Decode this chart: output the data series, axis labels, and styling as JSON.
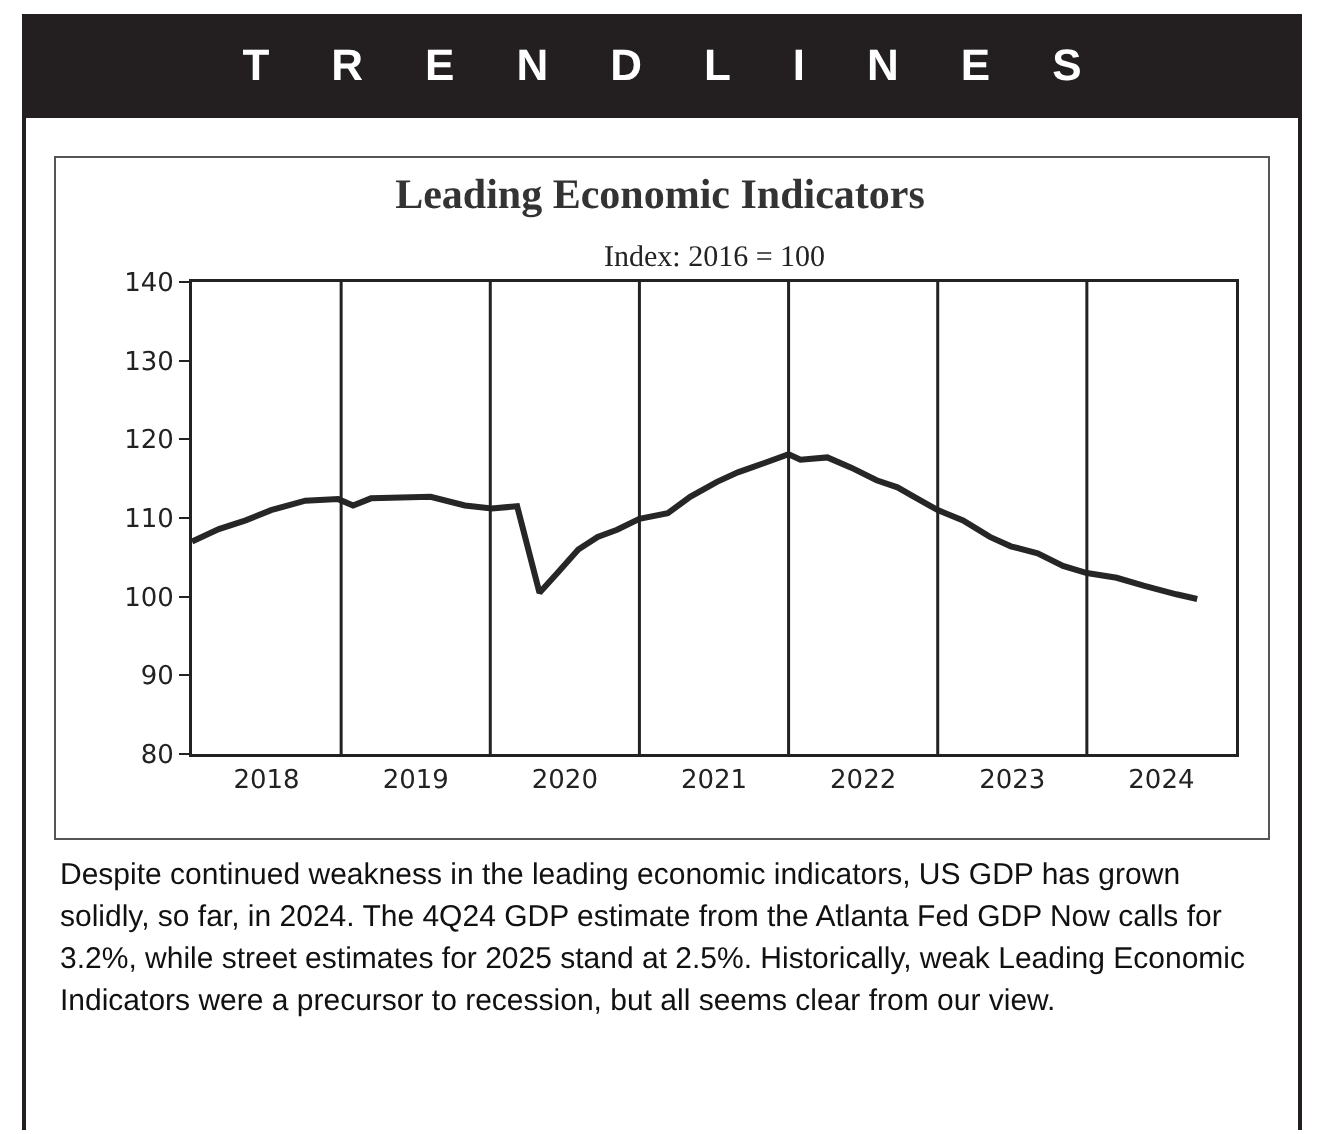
{
  "chart_data": {
    "type": "line",
    "title": "Leading Economic Indicators",
    "subtitle": "Index: 2016 = 100",
    "annotations": [
      "TRENDLINES",
      "Despite continued weakness in the leading economic indicators, US GDP has grown solidly, so far, in 2024.  The 4Q24 GDP estimate from the Atlanta Fed GDP Now calls for 3.2%, while street estimates for 2025 stand at 2.5%.  Historically, weak Leading Economic Indicators were a precursor to recession, but all seems clear from our view."
    ],
    "x": [
      2018.0,
      2018.18,
      2018.36,
      2018.53,
      2018.76,
      2018.98,
      2019.08,
      2019.2,
      2019.6,
      2019.83,
      2020.01,
      2020.18,
      2020.33,
      2020.45,
      2020.59,
      2020.72,
      2020.85,
      2021.0,
      2021.19,
      2021.34,
      2021.52,
      2021.66,
      2021.75,
      2022.0,
      2022.08,
      2022.26,
      2022.42,
      2022.59,
      2022.73,
      2022.86,
      2023.0,
      2023.17,
      2023.35,
      2023.49,
      2023.67,
      2023.84,
      2024.0,
      2024.2,
      2024.38,
      2024.6,
      2024.74
    ],
    "series": [
      {
        "color": "#262626",
        "values": [
          107.0,
          108.6,
          109.7,
          111.0,
          112.2,
          112.4,
          111.6,
          112.5,
          112.7,
          111.6,
          111.2,
          111.5,
          100.5,
          103.0,
          106.0,
          107.6,
          108.5,
          109.9,
          110.6,
          112.7,
          114.6,
          115.8,
          116.4,
          118.1,
          117.4,
          117.7,
          116.4,
          114.8,
          113.9,
          112.5,
          111.0,
          109.7,
          107.6,
          106.4,
          105.5,
          103.9,
          103.0,
          102.4,
          101.4,
          100.3,
          99.7
        ]
      }
    ],
    "xlim": [
      2018,
      2025
    ],
    "xticks": [
      {
        "value": 2018.5,
        "label": "2018"
      },
      {
        "value": 2019,
        "label": null
      },
      {
        "value": 2019.5,
        "label": "2019"
      },
      {
        "value": 2020,
        "label": null
      },
      {
        "value": 2020.5,
        "label": "2020"
      },
      {
        "value": 2021,
        "label": null
      },
      {
        "value": 2021.5,
        "label": "2021"
      },
      {
        "value": 2022,
        "label": null
      },
      {
        "value": 2022.5,
        "label": "2022"
      },
      {
        "value": 2023,
        "label": null
      },
      {
        "value": 2023.5,
        "label": "2023"
      },
      {
        "value": 2024,
        "label": null
      },
      {
        "value": 2024.5,
        "label": "2024"
      }
    ],
    "ylim": [
      80,
      140
    ],
    "yticks": [
      80,
      90,
      100,
      110,
      120,
      130,
      140
    ],
    "grid": "x",
    "marker": "none",
    "line_style": "solid"
  }
}
